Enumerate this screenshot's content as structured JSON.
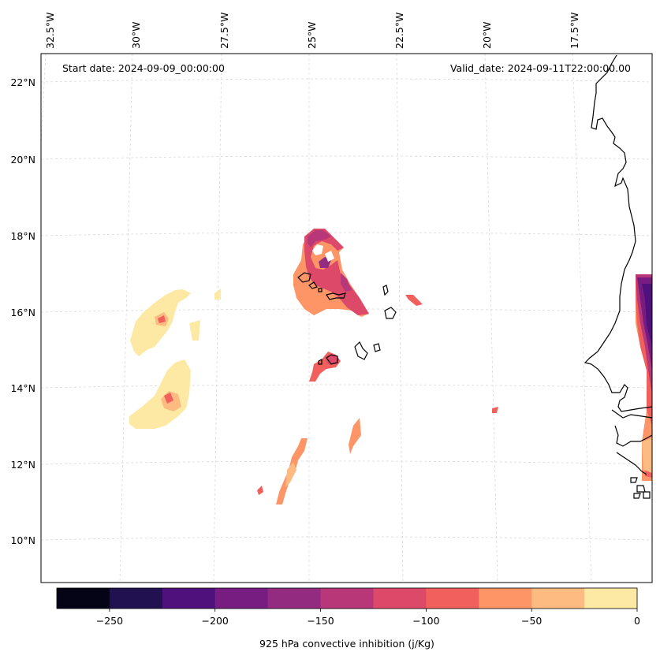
{
  "map": {
    "start_label": "Start date: 2024-09-09_00:00:00",
    "valid_label": "Valid_date: 2024-09-11T22:00:00.00",
    "lon_labels": [
      "32.5°W",
      "30°W",
      "27.5°W",
      "25°W",
      "22.5°W",
      "20°W",
      "17.5°W"
    ],
    "lat_labels": [
      "22°N",
      "20°N",
      "18°N",
      "16°N",
      "14°N",
      "12°N",
      "10°N"
    ],
    "gridline_color": "#d9d9d9",
    "coast_color": "#000000"
  },
  "colorbar": {
    "label": "925 hPa convective inhibition (j/Kg)",
    "tick_labels": [
      "−250",
      "−200",
      "−150",
      "−100",
      "−50",
      "0"
    ],
    "bin_colors": [
      "#050416",
      "#221150",
      "#4f117b",
      "#771c81",
      "#932b80",
      "#b73779",
      "#dd4968",
      "#f1605d",
      "#fd9567",
      "#febb81",
      "#fde9a4"
    ]
  }
}
